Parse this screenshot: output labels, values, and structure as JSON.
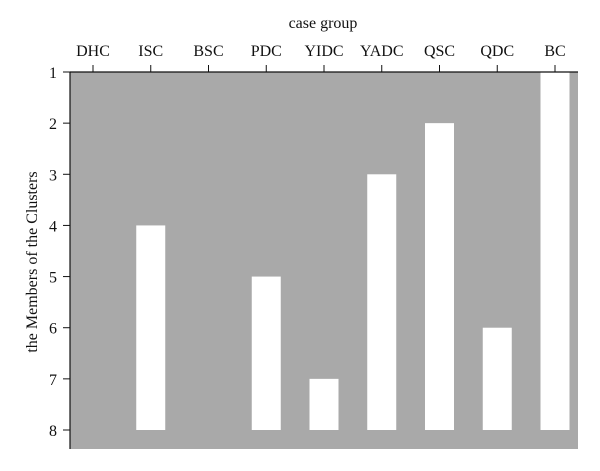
{
  "chart_data": {
    "type": "bar",
    "title": "",
    "xlabel": "case group",
    "ylabel": "the Members of the Clusters",
    "xaxis_position": "top",
    "y_inverted": true,
    "ylim": [
      1,
      8
    ],
    "yticks": [
      1,
      2,
      3,
      4,
      5,
      6,
      7,
      8
    ],
    "categories": [
      "DHC",
      "ISC",
      "BSC",
      "PDC",
      "YIDC",
      "YADC",
      "QSC",
      "QDC",
      "BC"
    ],
    "values": [
      8,
      4,
      8,
      5,
      7,
      3,
      2,
      6,
      1
    ],
    "grid": false,
    "legend": "none",
    "colors": {
      "bar": "#ffffff",
      "background": "#a9a9a9",
      "axis": "#111111"
    }
  }
}
